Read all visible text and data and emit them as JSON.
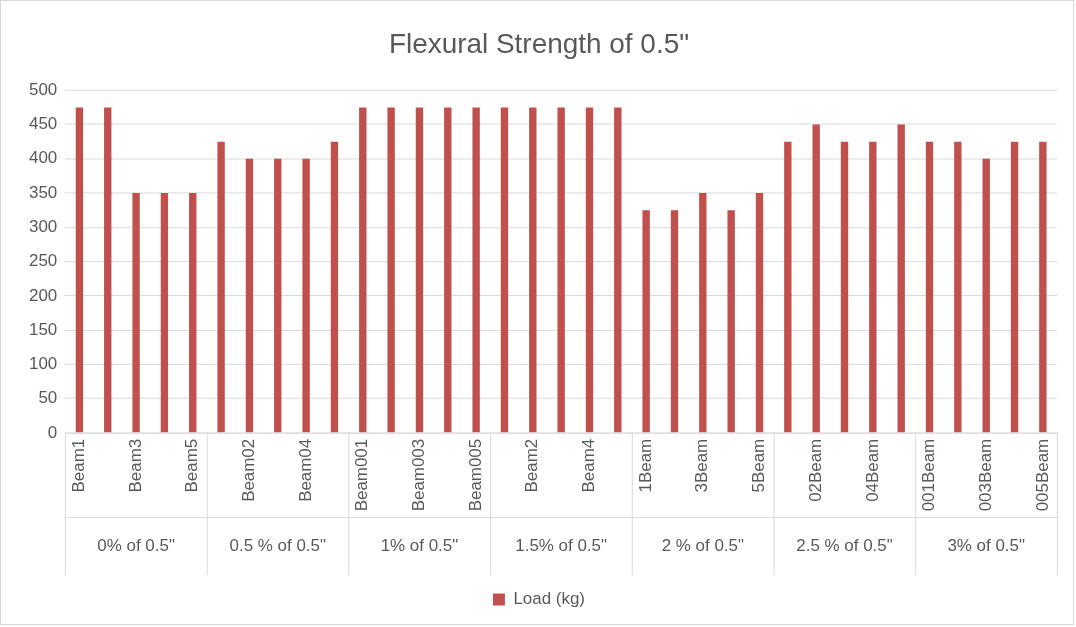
{
  "chart_data": {
    "type": "bar",
    "title": "Flexural Strength of 0.5\"",
    "categories": [
      "Beam1",
      null,
      "Beam3",
      null,
      "Beam5",
      null,
      "Beam02",
      null,
      "Beam04",
      null,
      "Beam001",
      null,
      "Beam003",
      null,
      "Beam005",
      null,
      "Beam2",
      null,
      "Beam4",
      null,
      "1Beam",
      null,
      "3Beam",
      null,
      "5Beam",
      null,
      "02Beam",
      null,
      "04Beam",
      null,
      "001Beam",
      null,
      "003Beam",
      null,
      "005Beam"
    ],
    "series": [
      {
        "name": "Load (kg)",
        "color": "#c0504d",
        "values": [
          475,
          475,
          350,
          350,
          350,
          425,
          400,
          400,
          400,
          425,
          475,
          475,
          475,
          475,
          475,
          475,
          475,
          475,
          475,
          475,
          325,
          325,
          350,
          325,
          350,
          425,
          450,
          425,
          425,
          450,
          425,
          425,
          400,
          425,
          425
        ]
      }
    ],
    "annotations": [
      "0% of 0.5\"",
      "0.5 % of 0.5\"",
      "1% of 0.5\"",
      "1.5% of 0.5\"",
      "2 % of 0.5\"",
      "2.5 % of 0.5\"",
      "3% of 0.5\""
    ],
    "ylim": [
      0,
      500
    ],
    "yticks": [
      0,
      50,
      100,
      150,
      200,
      250,
      300,
      350,
      400,
      450,
      500
    ],
    "grid": "y",
    "legend": "bottom"
  }
}
